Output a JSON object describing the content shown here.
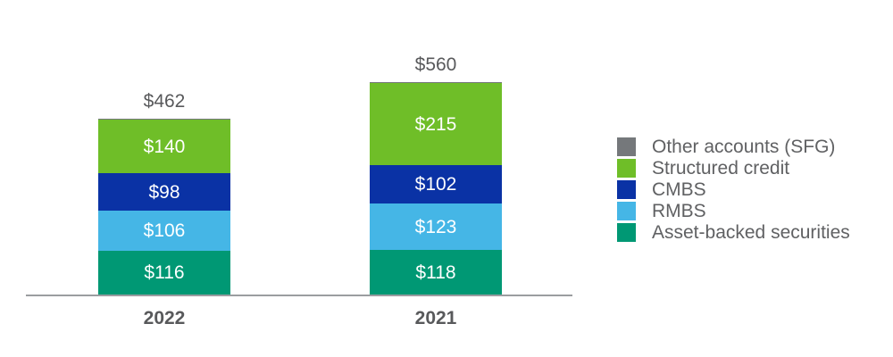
{
  "chart_data": {
    "type": "bar",
    "stacked": true,
    "orientation": "vertical",
    "categories": [
      "2022",
      "2021"
    ],
    "series": [
      {
        "name": "Asset-backed securities",
        "color": "#009874",
        "values": [
          116,
          118
        ]
      },
      {
        "name": "RMBS",
        "color": "#45B6E6",
        "values": [
          106,
          123
        ]
      },
      {
        "name": "CMBS",
        "color": "#0A32A5",
        "values": [
          98,
          102
        ]
      },
      {
        "name": "Structured credit",
        "color": "#6FBE28",
        "values": [
          140,
          215
        ]
      },
      {
        "name": "Other accounts (SFG)",
        "color": "#75787B",
        "values": [
          2,
          2
        ]
      }
    ],
    "totals": [
      462,
      560
    ],
    "total_labels": [
      "$462",
      "$560"
    ],
    "segment_labels": {
      "2022": [
        "$116",
        "$106",
        "$98",
        "$140"
      ],
      "2021": [
        "$118",
        "$123",
        "$102",
        "$215"
      ]
    },
    "value_prefix": "$",
    "title": "",
    "xlabel": "",
    "ylabel": "",
    "grid": false,
    "axis_baseline_color": "#9B9DA0",
    "legend_position": "right",
    "legend_order": [
      "Other accounts (SFG)",
      "Structured credit",
      "CMBS",
      "RMBS",
      "Asset-backed securities"
    ]
  },
  "colors": {
    "label_text": "#58595B",
    "legend_text": "#606163",
    "segment_value_text": "#FFFFFF",
    "axis_line": "#9B9DA0",
    "background": "#FFFFFF"
  }
}
